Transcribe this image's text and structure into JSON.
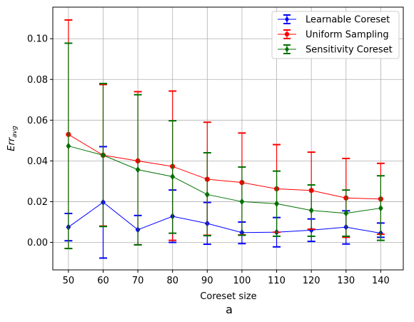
{
  "chart_data": {
    "type": "line",
    "subtitle": "a",
    "xlabel": "Coreset size",
    "ylabel_main": "Err",
    "ylabel_sub": "avg",
    "x": [
      50,
      60,
      70,
      80,
      90,
      100,
      110,
      120,
      130,
      140
    ],
    "x_ticks": [
      "50",
      "60",
      "70",
      "80",
      "90",
      "100",
      "110",
      "120",
      "130",
      "140"
    ],
    "y_ticks": [
      "0.00",
      "0.02",
      "0.04",
      "0.06",
      "0.08",
      "0.10"
    ],
    "y_tick_values": [
      0.0,
      0.02,
      0.04,
      0.06,
      0.08,
      0.1
    ],
    "xlim": [
      45.5,
      146.5
    ],
    "ylim": [
      -0.0135,
      0.1155
    ],
    "grid": true,
    "legend_position": "top-right",
    "series": [
      {
        "name": "Learnable Coreset",
        "color": "#0000ff",
        "marker": "diamond",
        "values": [
          0.0075,
          0.0197,
          0.0062,
          0.0128,
          0.0093,
          0.0048,
          0.005,
          0.006,
          0.0075,
          0.0045
        ],
        "err_low": [
          0.0008,
          -0.0077,
          -0.0012,
          0.0,
          -0.0009,
          -0.0006,
          -0.0022,
          0.0005,
          -0.0008,
          0.0025
        ],
        "err_high": [
          0.0142,
          0.047,
          0.0132,
          0.0257,
          0.0196,
          0.01,
          0.0122,
          0.0115,
          0.0155,
          0.0095
        ]
      },
      {
        "name": "Uniform Sampling",
        "color": "#ff0000",
        "marker": "circle",
        "values": [
          0.053,
          0.0428,
          0.04,
          0.0373,
          0.031,
          0.0294,
          0.0263,
          0.0255,
          0.0218,
          0.0213
        ],
        "err_low": [
          -0.003,
          0.008,
          -0.0012,
          0.001,
          0.0035,
          0.0037,
          0.005,
          0.0065,
          0.0025,
          0.004
        ],
        "err_high": [
          0.1092,
          0.0775,
          0.074,
          0.0743,
          0.059,
          0.0537,
          0.048,
          0.0443,
          0.0412,
          0.0388
        ]
      },
      {
        "name": "Sensitivity Coreset",
        "color": "#007000",
        "marker": "diamond",
        "values": [
          0.0473,
          0.0428,
          0.0357,
          0.0323,
          0.0235,
          0.02,
          0.019,
          0.0157,
          0.0143,
          0.0168
        ],
        "err_low": [
          -0.003,
          0.0078,
          -0.0012,
          0.0045,
          0.0033,
          0.0035,
          0.003,
          0.003,
          0.003,
          0.001
        ],
        "err_high": [
          0.0978,
          0.078,
          0.0725,
          0.0597,
          0.044,
          0.037,
          0.035,
          0.0282,
          0.0257,
          0.0327
        ]
      }
    ]
  }
}
